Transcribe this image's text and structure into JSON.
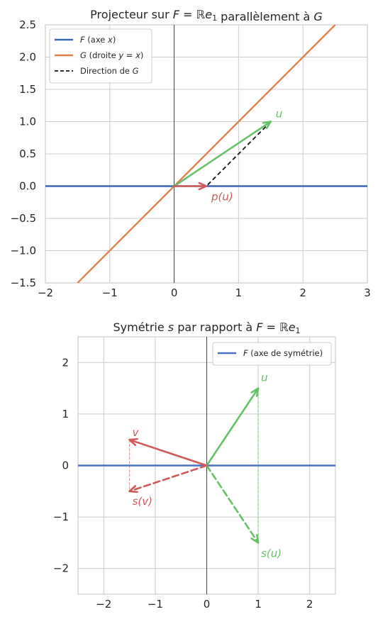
{
  "chart_data": [
    {
      "type": "line",
      "title": "Projecteur sur F = ℝe₁ parallèlement à G",
      "xlim": [
        -2,
        3
      ],
      "ylim": [
        -1.5,
        2.5
      ],
      "x_ticks": [
        "−2",
        "−1",
        "0",
        "1",
        "2",
        "3"
      ],
      "y_ticks": [
        "−1.5",
        "−1.0",
        "−0.5",
        "0.0",
        "0.5",
        "1.0",
        "1.5",
        "2.0",
        "2.5"
      ],
      "grid": true,
      "legend_position": "upper-left",
      "series": [
        {
          "name": "F (axe x)",
          "kind": "line",
          "color": "#3a66b0",
          "points": [
            [
              -2,
              0
            ],
            [
              3,
              0
            ]
          ]
        },
        {
          "name": "G (droite y = x)",
          "kind": "line",
          "color": "#e0804a",
          "points": [
            [
              -1.5,
              -1.5
            ],
            [
              2.5,
              2.5
            ]
          ]
        },
        {
          "name": "Direction de G",
          "kind": "dashed",
          "color": "#111111",
          "points": [
            [
              1.5,
              1.0
            ],
            [
              0.5,
              0.0
            ]
          ]
        }
      ],
      "vectors": [
        {
          "label": "u",
          "from": [
            0,
            0
          ],
          "to": [
            1.5,
            1.0
          ],
          "color": "#66c266",
          "style": "solid"
        },
        {
          "label": "p(u)",
          "from": [
            0,
            0
          ],
          "to": [
            0.5,
            0.0
          ],
          "color": "#d05a5a",
          "style": "solid"
        }
      ]
    },
    {
      "type": "line",
      "title": "Symétrie s par rapport à F = ℝe₁",
      "xlim": [
        -2.5,
        2.5
      ],
      "ylim": [
        -2.5,
        2.5
      ],
      "x_ticks": [
        "−2",
        "−1",
        "0",
        "1",
        "2"
      ],
      "y_ticks": [
        "−2",
        "−1",
        "0",
        "1",
        "2"
      ],
      "grid": true,
      "legend_position": "upper-right",
      "series": [
        {
          "name": "F (axe de symétrie)",
          "kind": "line",
          "color": "#4a72c0",
          "points": [
            [
              -2.5,
              0
            ],
            [
              2.5,
              0
            ]
          ]
        }
      ],
      "vectors": [
        {
          "label": "u",
          "from": [
            0,
            0
          ],
          "to": [
            1.0,
            1.5
          ],
          "color": "#66c266",
          "style": "solid"
        },
        {
          "label": "s(u)",
          "from": [
            0,
            0
          ],
          "to": [
            1.0,
            -1.5
          ],
          "color": "#66c266",
          "style": "dashed"
        },
        {
          "label": "v",
          "from": [
            0,
            0
          ],
          "to": [
            -1.5,
            0.5
          ],
          "color": "#d05a5a",
          "style": "solid"
        },
        {
          "label": "s(v)",
          "from": [
            0,
            0
          ],
          "to": [
            -1.5,
            -0.5
          ],
          "color": "#d05a5a",
          "style": "dashed"
        }
      ],
      "guides": [
        {
          "from": [
            1.0,
            1.5
          ],
          "to": [
            1.0,
            -1.5
          ],
          "color": "#66c266"
        },
        {
          "from": [
            -1.5,
            0.5
          ],
          "to": [
            -1.5,
            -0.5
          ],
          "color": "#d05a5a"
        }
      ]
    }
  ]
}
